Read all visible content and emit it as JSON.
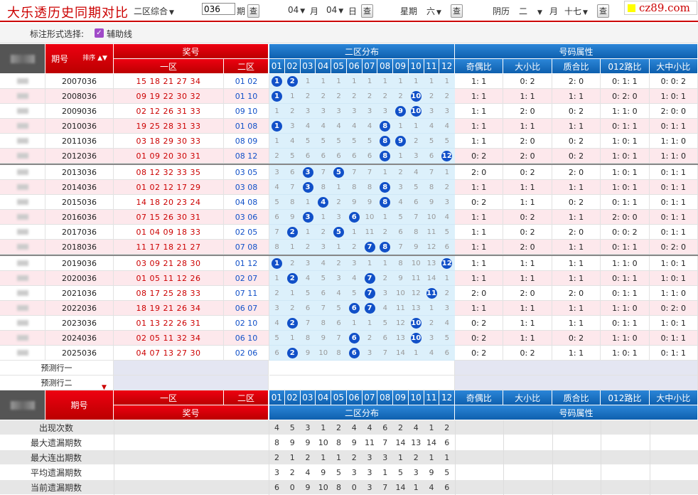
{
  "title": "大乐透历史同期对比",
  "toolbar": {
    "zone_select": "二区综合",
    "issue_value": "036",
    "issue_label": "期",
    "query_label": "查",
    "month_value": "04",
    "month_label": "月",
    "day_value": "04",
    "day_label": "日",
    "week_label": "星期",
    "week_value": "六",
    "lunar_label": "阴历",
    "lunar_month": "二",
    "lunar_month_suffix": "月",
    "lunar_day": "十七"
  },
  "logo": "cz89.com",
  "options": {
    "label": "标注形式选择:",
    "checkbox_label": "辅助线",
    "checked": true
  },
  "header": {
    "period": "期号",
    "sort": "排序",
    "prize": "奖号",
    "zone1": "一区",
    "zone2": "二区",
    "dist": "二区分布",
    "attr": "号码属性",
    "nums": [
      "01",
      "02",
      "03",
      "04",
      "05",
      "06",
      "07",
      "08",
      "09",
      "10",
      "11",
      "12"
    ],
    "attrs": [
      "奇偶比",
      "大小比",
      "质合比",
      "012路比",
      "大中小比"
    ]
  },
  "rows": [
    {
      "issue": "2007036",
      "z1": "15 18 21 27 34",
      "z2": "01 02",
      "dist": [
        "B01",
        "B02",
        "1",
        "1",
        "1",
        "1",
        "1",
        "1",
        "1",
        "1",
        "1",
        "1"
      ],
      "attrs": [
        "1: 1",
        "0: 2",
        "2: 0",
        "0: 1: 1",
        "0: 0: 2"
      ]
    },
    {
      "issue": "2008036",
      "z1": "09 19 22 30 32",
      "z2": "01 10",
      "dist": [
        "B01",
        "1",
        "2",
        "2",
        "2",
        "2",
        "2",
        "2",
        "2",
        "B10",
        "2",
        "2"
      ],
      "attrs": [
        "1: 1",
        "1: 1",
        "1: 1",
        "0: 2: 0",
        "1: 0: 1"
      ]
    },
    {
      "issue": "2009036",
      "z1": "02 12 26 31 33",
      "z2": "09 10",
      "dist": [
        "1",
        "2",
        "3",
        "3",
        "3",
        "3",
        "3",
        "3",
        "B09",
        "B10",
        "3",
        "3"
      ],
      "attrs": [
        "1: 1",
        "2: 0",
        "0: 2",
        "1: 1: 0",
        "2: 0: 0"
      ]
    },
    {
      "issue": "2010036",
      "z1": "19 25 28 31 33",
      "z2": "01 08",
      "dist": [
        "B01",
        "3",
        "4",
        "4",
        "4",
        "4",
        "4",
        "B08",
        "1",
        "1",
        "4",
        "4"
      ],
      "attrs": [
        "1: 1",
        "1: 1",
        "1: 1",
        "0: 1: 1",
        "0: 1: 1"
      ]
    },
    {
      "issue": "2011036",
      "z1": "03 18 29 30 33",
      "z2": "08 09",
      "dist": [
        "1",
        "4",
        "5",
        "5",
        "5",
        "5",
        "5",
        "B08",
        "B09",
        "2",
        "5",
        "5"
      ],
      "attrs": [
        "1: 1",
        "2: 0",
        "0: 2",
        "1: 0: 1",
        "1: 1: 0"
      ]
    },
    {
      "issue": "2012036",
      "z1": "01 09 20 30 31",
      "z2": "08 12",
      "dist": [
        "2",
        "5",
        "6",
        "6",
        "6",
        "6",
        "6",
        "B08",
        "1",
        "3",
        "6",
        "B12"
      ],
      "attrs": [
        "0: 2",
        "2: 0",
        "0: 2",
        "1: 0: 1",
        "1: 1: 0"
      ]
    },
    {
      "issue": "2013036",
      "z1": "08 12 32 33 35",
      "z2": "03 05",
      "dist": [
        "3",
        "6",
        "B03",
        "7",
        "B05",
        "7",
        "7",
        "1",
        "2",
        "4",
        "7",
        "1"
      ],
      "attrs": [
        "2: 0",
        "0: 2",
        "2: 0",
        "1: 0: 1",
        "0: 1: 1"
      ]
    },
    {
      "issue": "2014036",
      "z1": "01 02 12 17 29",
      "z2": "03 08",
      "dist": [
        "4",
        "7",
        "B03",
        "8",
        "1",
        "8",
        "8",
        "B08",
        "3",
        "5",
        "8",
        "2"
      ],
      "attrs": [
        "1: 1",
        "1: 1",
        "1: 1",
        "1: 0: 1",
        "0: 1: 1"
      ]
    },
    {
      "issue": "2015036",
      "z1": "14 18 20 23 24",
      "z2": "04 08",
      "dist": [
        "5",
        "8",
        "1",
        "B04",
        "2",
        "9",
        "9",
        "B08",
        "4",
        "6",
        "9",
        "3"
      ],
      "attrs": [
        "0: 2",
        "1: 1",
        "0: 2",
        "0: 1: 1",
        "0: 1: 1"
      ]
    },
    {
      "issue": "2016036",
      "z1": "07 15 26 30 31",
      "z2": "03 06",
      "dist": [
        "6",
        "9",
        "B03",
        "1",
        "3",
        "B06",
        "10",
        "1",
        "5",
        "7",
        "10",
        "4"
      ],
      "attrs": [
        "1: 1",
        "0: 2",
        "1: 1",
        "2: 0: 0",
        "0: 1: 1"
      ]
    },
    {
      "issue": "2017036",
      "z1": "01 04 09 18 33",
      "z2": "02 05",
      "dist": [
        "7",
        "B02",
        "1",
        "2",
        "B05",
        "1",
        "11",
        "2",
        "6",
        "8",
        "11",
        "5"
      ],
      "attrs": [
        "1: 1",
        "0: 2",
        "2: 0",
        "0: 0: 2",
        "0: 1: 1"
      ]
    },
    {
      "issue": "2018036",
      "z1": "11 17 18 21 27",
      "z2": "07 08",
      "dist": [
        "8",
        "1",
        "2",
        "3",
        "1",
        "2",
        "B07",
        "B08",
        "7",
        "9",
        "12",
        "6"
      ],
      "attrs": [
        "1: 1",
        "2: 0",
        "1: 1",
        "0: 1: 1",
        "0: 2: 0"
      ]
    },
    {
      "issue": "2019036",
      "z1": "03 09 21 28 30",
      "z2": "01 12",
      "dist": [
        "B01",
        "2",
        "3",
        "4",
        "2",
        "3",
        "1",
        "1",
        "8",
        "10",
        "13",
        "B12"
      ],
      "attrs": [
        "1: 1",
        "1: 1",
        "1: 1",
        "1: 1: 0",
        "1: 0: 1"
      ]
    },
    {
      "issue": "2020036",
      "z1": "01 05 11 12 26",
      "z2": "02 07",
      "dist": [
        "1",
        "B02",
        "4",
        "5",
        "3",
        "4",
        "B07",
        "2",
        "9",
        "11",
        "14",
        "1"
      ],
      "attrs": [
        "1: 1",
        "1: 1",
        "1: 1",
        "0: 1: 1",
        "1: 0: 1"
      ]
    },
    {
      "issue": "2021036",
      "z1": "08 17 25 28 33",
      "z2": "07 11",
      "dist": [
        "2",
        "1",
        "5",
        "6",
        "4",
        "5",
        "B07",
        "3",
        "10",
        "12",
        "B11",
        "2"
      ],
      "attrs": [
        "2: 0",
        "2: 0",
        "2: 0",
        "0: 1: 1",
        "1: 1: 0"
      ]
    },
    {
      "issue": "2022036",
      "z1": "18 19 21 26 34",
      "z2": "06 07",
      "dist": [
        "3",
        "2",
        "6",
        "7",
        "5",
        "B06",
        "B07",
        "4",
        "11",
        "13",
        "1",
        "3"
      ],
      "attrs": [
        "1: 1",
        "1: 1",
        "1: 1",
        "1: 1: 0",
        "0: 2: 0"
      ]
    },
    {
      "issue": "2023036",
      "z1": "01 13 22 26 31",
      "z2": "02 10",
      "dist": [
        "4",
        "B02",
        "7",
        "8",
        "6",
        "1",
        "1",
        "5",
        "12",
        "B10",
        "2",
        "4"
      ],
      "attrs": [
        "0: 2",
        "1: 1",
        "1: 1",
        "0: 1: 1",
        "1: 0: 1"
      ]
    },
    {
      "issue": "2024036",
      "z1": "02 05 11 32 34",
      "z2": "06 10",
      "dist": [
        "5",
        "1",
        "8",
        "9",
        "7",
        "B06",
        "2",
        "6",
        "13",
        "B10",
        "3",
        "5"
      ],
      "attrs": [
        "0: 2",
        "1: 1",
        "0: 2",
        "1: 1: 0",
        "0: 1: 1"
      ]
    },
    {
      "issue": "2025036",
      "z1": "04 07 13 27 30",
      "z2": "02 06",
      "dist": [
        "6",
        "B02",
        "9",
        "10",
        "8",
        "B06",
        "3",
        "7",
        "14",
        "1",
        "4",
        "6"
      ],
      "attrs": [
        "0: 2",
        "0: 2",
        "1: 1",
        "1: 0: 1",
        "0: 1: 1"
      ]
    }
  ],
  "predict": [
    "预测行一",
    "预测行二"
  ],
  "footer_header": {
    "period": "期号",
    "zone1": "一区",
    "zone2": "二区",
    "prize": "奖号",
    "dist": "二区分布",
    "attr": "号码属性"
  },
  "stats": [
    {
      "label": "出现次数",
      "values": [
        "4",
        "5",
        "3",
        "1",
        "2",
        "4",
        "4",
        "6",
        "2",
        "4",
        "1",
        "2"
      ]
    },
    {
      "label": "最大遗漏期数",
      "values": [
        "8",
        "9",
        "9",
        "10",
        "8",
        "9",
        "11",
        "7",
        "14",
        "13",
        "14",
        "6"
      ]
    },
    {
      "label": "最大连出期数",
      "values": [
        "2",
        "1",
        "2",
        "1",
        "1",
        "2",
        "3",
        "3",
        "1",
        "2",
        "1",
        "1"
      ]
    },
    {
      "label": "平均遗漏期数",
      "values": [
        "3",
        "2",
        "4",
        "9",
        "5",
        "3",
        "3",
        "1",
        "5",
        "3",
        "9",
        "5"
      ]
    },
    {
      "label": "当前遗漏期数",
      "values": [
        "6",
        "0",
        "9",
        "10",
        "8",
        "0",
        "3",
        "7",
        "14",
        "1",
        "4",
        "6"
      ]
    }
  ],
  "colors": {
    "red": "#c00",
    "blue": "#1150c8",
    "zone1_text": "#c00",
    "zone2_text": "#1150c8"
  }
}
